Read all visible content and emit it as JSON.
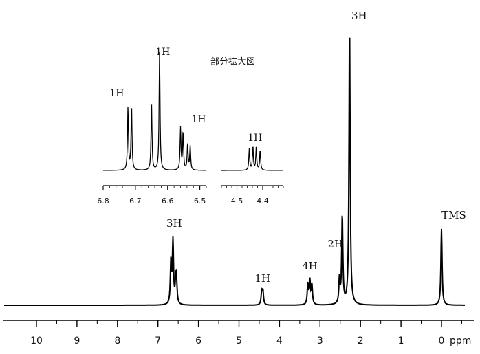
{
  "chart_data": [
    {
      "type": "line",
      "title": "",
      "xlabel": "ppm",
      "ylabel": "",
      "xlim": [
        10.5,
        -0.6
      ],
      "x_reversed": true,
      "x_ticks": [
        "10",
        "9",
        "8",
        "7",
        "6",
        "5",
        "4",
        "3",
        "2",
        "1",
        "0"
      ],
      "x_unit_label": "ppm",
      "peaks": [
        {
          "x": 6.68,
          "height": 0.15,
          "group": "aromatic"
        },
        {
          "x": 6.63,
          "height": 0.225,
          "group": "aromatic"
        },
        {
          "x": 6.56,
          "height": 0.085,
          "group": "aromatic"
        },
        {
          "x": 6.54,
          "height": 0.06,
          "group": "aromatic"
        },
        {
          "x": 4.44,
          "height": 0.045,
          "group": "methine"
        },
        {
          "x": 4.41,
          "height": 0.05,
          "group": "methine"
        },
        {
          "x": 3.3,
          "height": 0.075,
          "group": "ch2"
        },
        {
          "x": 3.25,
          "height": 0.085,
          "group": "ch2"
        },
        {
          "x": 3.2,
          "height": 0.07,
          "group": "ch2"
        },
        {
          "x": 2.52,
          "height": 0.09,
          "group": "benzylic"
        },
        {
          "x": 2.45,
          "height": 0.32,
          "group": "benzylic"
        },
        {
          "x": 2.27,
          "height": 1.0,
          "group": "methyl"
        },
        {
          "x": 0.0,
          "height": 0.275,
          "group": "reference"
        }
      ],
      "annotations": [
        {
          "text": "3H",
          "x": 6.6
        },
        {
          "text": "1H",
          "x": 4.42
        },
        {
          "text": "4H",
          "x": 3.25
        },
        {
          "text": "2H",
          "x": 2.62
        },
        {
          "text": "3H",
          "x": 2.27
        },
        {
          "text": "TMS",
          "x": 0.0
        }
      ]
    },
    {
      "type": "line",
      "title": "部分拡大図",
      "panels": [
        {
          "xlim": [
            6.8,
            6.48
          ],
          "x_ticks": [
            "6.8",
            "6.7",
            "6.6",
            "6.5"
          ],
          "peaks": [
            {
              "x": 6.723,
              "height": 0.52
            },
            {
              "x": 6.712,
              "height": 0.55
            },
            {
              "x": 6.65,
              "height": 0.57
            },
            {
              "x": 6.625,
              "height": 0.98
            },
            {
              "x": 6.56,
              "height": 0.35
            },
            {
              "x": 6.552,
              "height": 0.32
            },
            {
              "x": 6.538,
              "height": 0.22
            },
            {
              "x": 6.53,
              "height": 0.2
            }
          ],
          "annotations": [
            {
              "text": "1H",
              "x": 6.715
            },
            {
              "text": "1H",
              "x": 6.615
            },
            {
              "text": "1H",
              "x": 6.525
            }
          ]
        },
        {
          "xlim": [
            4.56,
            4.32
          ],
          "x_ticks": [
            "4.5",
            "4.4"
          ],
          "peaks": [
            {
              "x": 4.452,
              "height": 0.18
            },
            {
              "x": 4.438,
              "height": 0.2
            },
            {
              "x": 4.425,
              "height": 0.19
            },
            {
              "x": 4.41,
              "height": 0.17
            }
          ],
          "annotations": [
            {
              "text": "1H",
              "x": 4.43
            }
          ]
        }
      ]
    }
  ]
}
